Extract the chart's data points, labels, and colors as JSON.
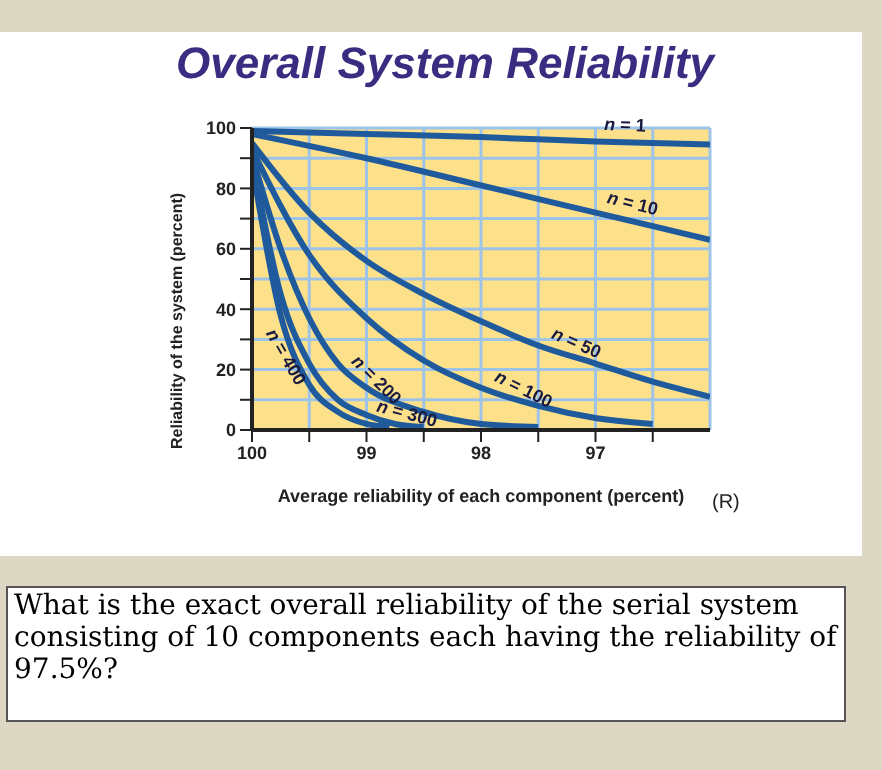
{
  "chart_data": {
    "type": "line",
    "title": "Overall System Reliability",
    "xlabel": "Average reliability of each component (percent)",
    "ylabel": "Reliability of the system (percent)",
    "xlim": [
      100,
      96
    ],
    "xticks": [
      100,
      {
        "value": 99.5,
        "label": null
      },
      99,
      {
        "value": 98.5,
        "label": null
      },
      98,
      {
        "value": 97.5,
        "label": null
      },
      97,
      {
        "value": 96.5,
        "label": null
      }
    ],
    "ylim": [
      0,
      100
    ],
    "yticks": [
      0,
      {
        "value": 10,
        "label": null
      },
      20,
      {
        "value": 30,
        "label": null
      },
      40,
      {
        "value": 50,
        "label": null
      },
      60,
      {
        "value": 70,
        "label": null
      },
      80,
      {
        "value": 90,
        "label": null
      },
      100
    ],
    "grid": true,
    "legend": false,
    "marker": "none",
    "line_style": "solid",
    "series": [
      {
        "name": "n = 1",
        "color": "#1f5a9c",
        "x": [
          100,
          99,
          98,
          97,
          96
        ],
        "values": [
          99,
          98,
          97,
          95.5,
          94.5
        ]
      },
      {
        "name": "n = 10",
        "color": "#1f5a9c",
        "x": [
          100,
          99,
          98,
          97,
          96
        ],
        "values": [
          98,
          90,
          81,
          72,
          63
        ]
      },
      {
        "name": "n = 50",
        "color": "#1f5a9c",
        "x": [
          100,
          99.5,
          99,
          98.5,
          98,
          97.5,
          97,
          96.5,
          96
        ],
        "values": [
          95,
          72,
          56,
          45,
          36,
          28,
          22,
          16,
          11
        ]
      },
      {
        "name": "n = 100",
        "color": "#1f5a9c",
        "x": [
          100,
          99.5,
          99,
          98.5,
          98,
          97.5,
          97,
          96.5
        ],
        "values": [
          93,
          58,
          37,
          23,
          14,
          8,
          4,
          2
        ]
      },
      {
        "name": "n = 200",
        "color": "#1f5a9c",
        "x": [
          100,
          99.75,
          99.5,
          99.25,
          99,
          98.5,
          98,
          97.5
        ],
        "values": [
          91,
          60,
          37,
          22,
          14,
          6,
          2,
          1
        ]
      },
      {
        "name": "n = 300",
        "color": "#1f5a9c",
        "x": [
          100,
          99.75,
          99.5,
          99.25,
          99,
          98.75,
          98.5
        ],
        "values": [
          90,
          45,
          22,
          10,
          5,
          2,
          1
        ]
      },
      {
        "name": "n = 400",
        "color": "#1f5a9c",
        "x": [
          100,
          99.75,
          99.5,
          99.25,
          99,
          98.8
        ],
        "values": [
          88,
          38,
          15,
          6,
          2,
          1
        ]
      }
    ],
    "annotations": [
      "(R)",
      "What is the exact overall reliability of the serial system consisting of 10 components each having the reliability of 97.5%?"
    ]
  }
}
